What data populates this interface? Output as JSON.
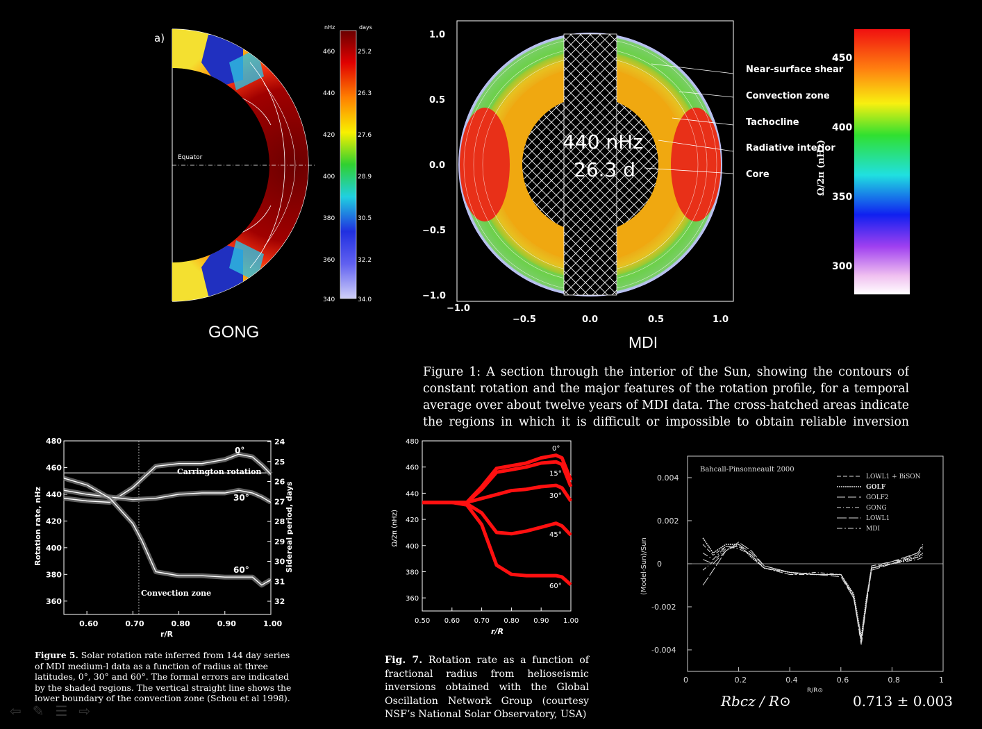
{
  "gong": {
    "panel_letter": "a)",
    "equator_label": "Equator",
    "label": "GONG",
    "colorbar": {
      "unit_left": "nHz",
      "unit_right": "days",
      "nhz_ticks": [
        "460",
        "440",
        "420",
        "400",
        "380",
        "360",
        "340"
      ],
      "day_ticks": [
        "25.2",
        "26.3",
        "27.6",
        "28.9",
        "30.5",
        "32.2",
        "34.0"
      ]
    }
  },
  "mdi": {
    "label": "MDI",
    "overlay_line1": "440 nHz",
    "overlay_line2": "26.3 d",
    "annotations": [
      "Near-surface shear",
      "Convection zone",
      "Tachocline",
      "Radiative interior",
      "Core"
    ],
    "x_ticks": [
      "−1.0",
      "−0.5",
      "0.0",
      "0.5",
      "1.0"
    ],
    "y_ticks": [
      "1.0",
      "0.5",
      "0.0",
      "−0.5",
      "−1.0"
    ],
    "colorbar_label": "Ω/2π (nHz)",
    "colorbar_ticks": [
      "450",
      "400",
      "350",
      "300"
    ],
    "caption": "Figure 1: A section through the interior of the Sun, showing the contours of constant rotation and the major features of the rotation profile, for a temporal average over about twelve years of MDI data. The cross-hatched areas indicate the regions in which it is difficult or impossible to obtain reliable inversion results"
  },
  "fig5": {
    "caption_bold": "Figure 5.",
    "caption_text": "Solar rotation rate inferred from 144 day series of MDI medium-l data as a function of radius at three latitudes, 0°, 30° and 60°. The formal errors are indicated by the shaded regions. The vertical straight line shows the lower boundary of the convection zone (Schou et al 1998).",
    "ylabel": "Rotation rate, nHz",
    "ylabel_right": "Sidereal period, days",
    "xlabel": "r/R",
    "carrington_label": "Carrington rotation",
    "convection_label": "Convection zone",
    "right_ticks": [
      "24",
      "25",
      "26",
      "27",
      "28",
      "29",
      "30",
      "31",
      "32"
    ]
  },
  "fig7": {
    "caption_bold": "Fig. 7.",
    "caption_text": "Rotation rate as a function of fractional radius from helioseismic inversions obtained with the Global Oscillation Network Group (courtesy NSF’s National Solar Observatory, USA)",
    "ylabel": "Ω/2π (nHz)",
    "xlabel": "r/R"
  },
  "fig_bp": {
    "title": "Bahcall-Pinsonneault 2000",
    "ylabel": "(Model-Sun)/Sun",
    "xlabel": "R/R⊙",
    "legend": [
      "LOWL1 + BiSON",
      "GOLF",
      "GOLF2",
      "GONG",
      "LOWL1",
      "MDI"
    ],
    "formula_lhs": "Rbcz / R⊙",
    "formula_rhs": "0.713 ± 0.003"
  },
  "chart_data": [
    {
      "type": "line",
      "title": "",
      "xlabel": "r/R",
      "ylabel": "Rotation rate, nHz",
      "xlim": [
        0.55,
        1.0
      ],
      "ylim": [
        350,
        480
      ],
      "x_ticks": [
        0.6,
        0.7,
        0.8,
        0.9,
        1.0
      ],
      "y_ticks": [
        360,
        380,
        400,
        420,
        440,
        460,
        480
      ],
      "series": [
        {
          "name": "0°",
          "x": [
            0.55,
            0.6,
            0.65,
            0.7,
            0.75,
            0.8,
            0.85,
            0.9,
            0.93,
            0.96,
            0.98,
            1.0
          ],
          "y": [
            437,
            435,
            434,
            445,
            461,
            463,
            463,
            466,
            470,
            468,
            462,
            455
          ]
        },
        {
          "name": "30°",
          "x": [
            0.55,
            0.6,
            0.65,
            0.7,
            0.75,
            0.8,
            0.85,
            0.9,
            0.93,
            0.96,
            0.98,
            1.0
          ],
          "y": [
            443,
            440,
            438,
            436,
            437,
            440,
            441,
            441,
            443,
            441,
            438,
            434
          ]
        },
        {
          "name": "60°",
          "x": [
            0.55,
            0.6,
            0.65,
            0.7,
            0.72,
            0.75,
            0.8,
            0.85,
            0.9,
            0.93,
            0.96,
            0.98,
            1.0
          ],
          "y": [
            452,
            447,
            437,
            418,
            405,
            382,
            379,
            379,
            378,
            378,
            378,
            372,
            376
          ]
        }
      ],
      "hline": 456,
      "vline": 0.713
    },
    {
      "type": "line",
      "title": "",
      "xlabel": "r/R",
      "ylabel": "Ω/2π (nHz)",
      "xlim": [
        0.5,
        1.0
      ],
      "ylim": [
        350,
        480
      ],
      "x_ticks": [
        0.5,
        0.6,
        0.7,
        0.8,
        0.9,
        1.0
      ],
      "y_ticks": [
        360,
        380,
        400,
        420,
        440,
        460,
        480
      ],
      "series": [
        {
          "name": "0°",
          "x": [
            0.5,
            0.6,
            0.65,
            0.7,
            0.75,
            0.8,
            0.85,
            0.9,
            0.95,
            0.97,
            1.0
          ],
          "y": [
            433,
            433,
            433,
            445,
            459,
            461,
            463,
            467,
            469,
            467,
            450
          ]
        },
        {
          "name": "15°",
          "x": [
            0.5,
            0.6,
            0.65,
            0.7,
            0.75,
            0.8,
            0.85,
            0.9,
            0.95,
            0.97,
            1.0
          ],
          "y": [
            433,
            433,
            433,
            443,
            456,
            458,
            460,
            463,
            464,
            462,
            445
          ]
        },
        {
          "name": "30°",
          "x": [
            0.5,
            0.6,
            0.65,
            0.7,
            0.75,
            0.8,
            0.85,
            0.9,
            0.95,
            0.97,
            1.0
          ],
          "y": [
            433,
            433,
            433,
            436,
            439,
            442,
            443,
            445,
            446,
            444,
            434
          ]
        },
        {
          "name": "45°",
          "x": [
            0.5,
            0.6,
            0.65,
            0.7,
            0.75,
            0.8,
            0.85,
            0.9,
            0.95,
            0.97,
            1.0
          ],
          "y": [
            433,
            433,
            432,
            425,
            410,
            409,
            411,
            414,
            417,
            415,
            408
          ]
        },
        {
          "name": "60°",
          "x": [
            0.5,
            0.6,
            0.65,
            0.7,
            0.75,
            0.8,
            0.85,
            0.9,
            0.95,
            0.97,
            1.0
          ],
          "y": [
            433,
            433,
            431,
            416,
            385,
            378,
            377,
            377,
            377,
            376,
            370
          ]
        }
      ]
    },
    {
      "type": "line",
      "title": "Bahcall-Pinsonneault 2000",
      "xlabel": "R/R⊙",
      "ylabel": "(Model-Sun)/Sun",
      "xlim": [
        0,
        1
      ],
      "ylim": [
        -0.005,
        0.005
      ],
      "x_ticks": [
        0,
        0.2,
        0.4,
        0.6,
        0.8,
        1
      ],
      "y_ticks": [
        -0.004,
        -0.002,
        0,
        0.002,
        0.004
      ],
      "series": [
        {
          "name": "LOWL1 + BiSON",
          "x": [
            0.06,
            0.1,
            0.15,
            0.2,
            0.25,
            0.3,
            0.4,
            0.5,
            0.6,
            0.65,
            0.68,
            0.7,
            0.72,
            0.8,
            0.9,
            0.92
          ],
          "y": [
            0.0009,
            0.0004,
            0.0008,
            0.0008,
            0.0004,
            -0.0002,
            -0.0004,
            -0.0005,
            -0.0005,
            -0.0015,
            -0.0036,
            -0.0018,
            -0.0002,
            0.0,
            0.0005,
            0.0009
          ]
        },
        {
          "name": "GOLF",
          "x": [
            0.06,
            0.1,
            0.15,
            0.2,
            0.25,
            0.3,
            0.4,
            0.5,
            0.6,
            0.65,
            0.68,
            0.7,
            0.72,
            0.8,
            0.9,
            0.92
          ],
          "y": [
            0.0012,
            0.0005,
            0.0009,
            0.0009,
            0.0003,
            -0.0002,
            -0.0004,
            -0.0005,
            -0.0005,
            -0.0014,
            -0.0034,
            -0.0016,
            -0.0002,
            0.0,
            0.0003,
            0.0005
          ]
        },
        {
          "name": "GOLF2",
          "x": [
            0.06,
            0.1,
            0.15,
            0.2,
            0.25,
            0.3,
            0.4,
            0.5,
            0.6,
            0.65,
            0.68,
            0.7,
            0.72,
            0.8,
            0.9,
            0.92
          ],
          "y": [
            0.0002,
            0.0,
            0.0006,
            0.0009,
            0.0005,
            -0.0001,
            -0.0004,
            -0.0005,
            -0.0006,
            -0.0016,
            -0.0037,
            -0.0019,
            -0.0003,
            0.0,
            0.0004,
            0.0007
          ]
        },
        {
          "name": "GONG",
          "x": [
            0.06,
            0.1,
            0.15,
            0.2,
            0.25,
            0.3,
            0.4,
            0.5,
            0.6,
            0.65,
            0.68,
            0.7,
            0.72,
            0.8,
            0.9,
            0.92
          ],
          "y": [
            -0.0003,
            0.0001,
            0.0007,
            0.0008,
            0.0004,
            -0.0002,
            -0.0005,
            -0.0004,
            -0.0005,
            -0.0015,
            -0.0038,
            -0.0018,
            -0.0002,
            0.0001,
            0.0003,
            0.0004
          ]
        },
        {
          "name": "LOWL1",
          "x": [
            0.06,
            0.1,
            0.15,
            0.2,
            0.25,
            0.3,
            0.4,
            0.5,
            0.6,
            0.65,
            0.68,
            0.7,
            0.72,
            0.8,
            0.9,
            0.92
          ],
          "y": [
            -0.001,
            -0.0003,
            0.0006,
            0.001,
            0.0006,
            -0.0001,
            -0.0004,
            -0.0005,
            -0.0005,
            -0.0016,
            -0.0035,
            -0.0017,
            -0.0001,
            0.0001,
            0.0005,
            0.0008
          ]
        },
        {
          "name": "MDI",
          "x": [
            0.06,
            0.1,
            0.15,
            0.2,
            0.25,
            0.3,
            0.4,
            0.5,
            0.6,
            0.65,
            0.68,
            0.7,
            0.72,
            0.8,
            0.9,
            0.92
          ],
          "y": [
            0.0005,
            0.0002,
            0.0008,
            0.0007,
            0.0004,
            -0.0002,
            -0.0005,
            -0.0005,
            -0.0005,
            -0.0015,
            -0.0036,
            -0.0018,
            -0.0002,
            0.0,
            0.0002,
            0.0003
          ]
        }
      ]
    }
  ]
}
